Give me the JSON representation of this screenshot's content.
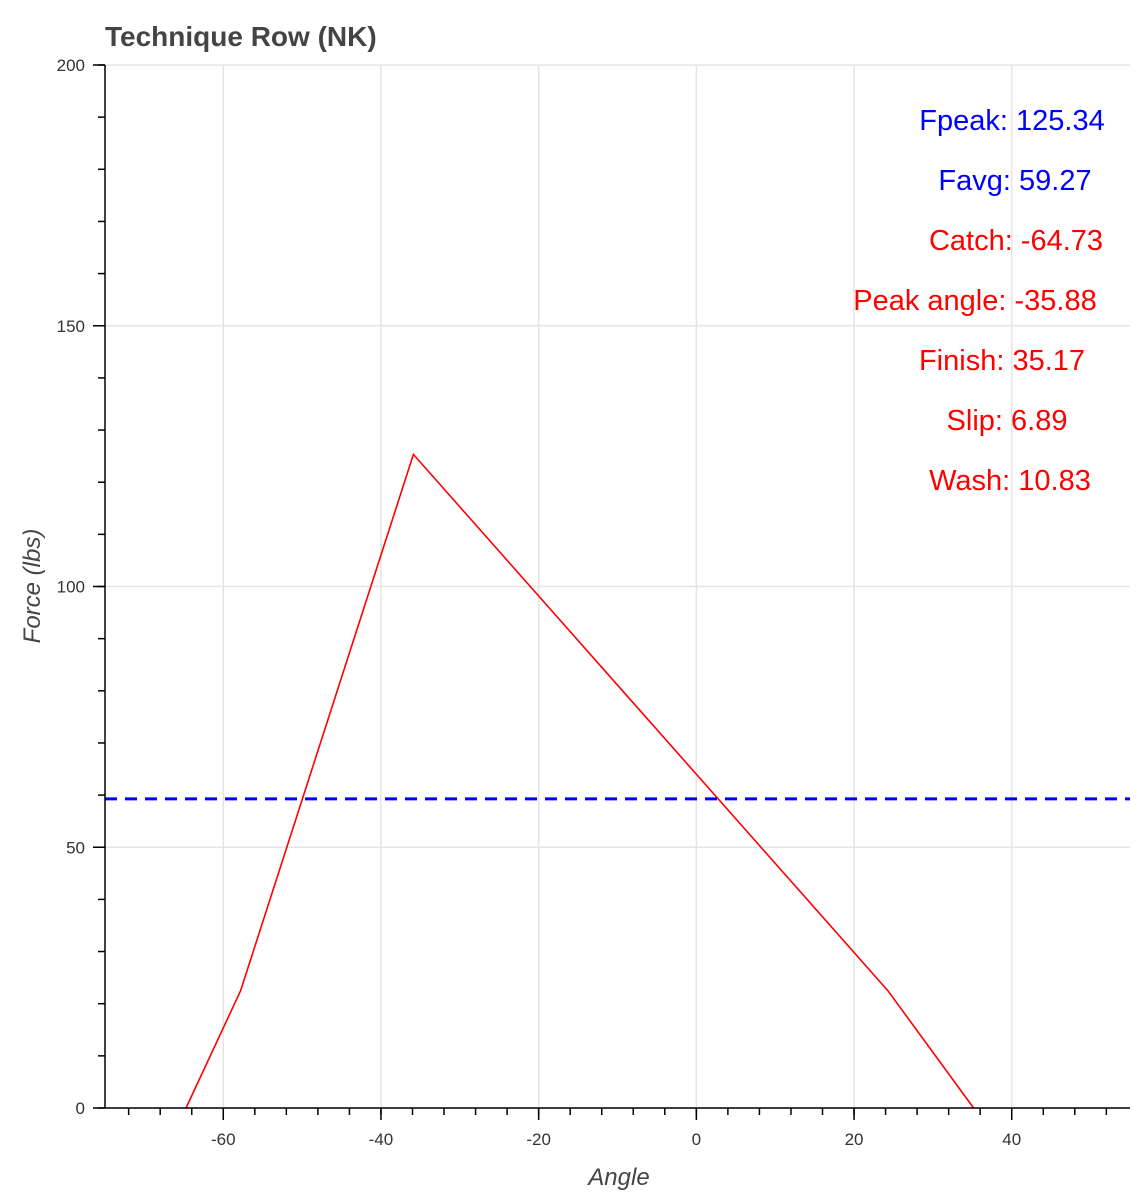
{
  "chart_data": {
    "type": "line",
    "title": "Technique Row (NK)",
    "xlabel": "Angle",
    "ylabel": "Force (lbs)",
    "xlim": [
      -75,
      55
    ],
    "ylim": [
      0,
      200
    ],
    "x_ticks": [
      -60,
      -40,
      -20,
      0,
      20,
      40
    ],
    "y_ticks": [
      0,
      50,
      100,
      150,
      200
    ],
    "grid": true,
    "series": [
      {
        "color": "#ff0000",
        "x": [
          -64.73,
          -57.8,
          -35.88,
          24.3,
          35.17
        ],
        "y": [
          0,
          22.5,
          125.34,
          22.5,
          0
        ]
      }
    ],
    "hlines": [
      {
        "y": 59.27,
        "color": "#0000ff",
        "style": "dashed"
      }
    ],
    "annotations": [
      {
        "text": "Fpeak: 125.34",
        "color": "#0000ff"
      },
      {
        "text": "Favg: 59.27",
        "color": "#0000ff"
      },
      {
        "text": "Catch: -64.73",
        "color": "#ff0000"
      },
      {
        "text": "Peak angle: -35.88",
        "color": "#ff0000"
      },
      {
        "text": "Finish: 35.17",
        "color": "#ff0000"
      },
      {
        "text": "Slip: 6.89",
        "color": "#ff0000"
      },
      {
        "text": "Wash: 10.83",
        "color": "#ff0000"
      }
    ]
  }
}
